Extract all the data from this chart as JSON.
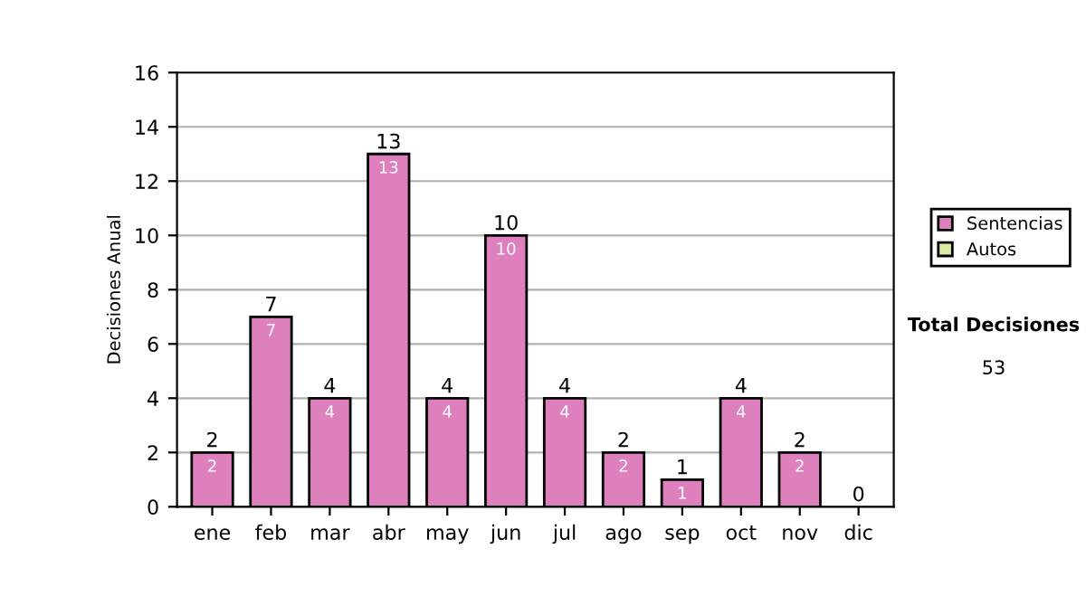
{
  "chart_data": {
    "type": "bar",
    "stacked": true,
    "ylabel": "Decisiones Anual",
    "categories": [
      "ene",
      "feb",
      "mar",
      "abr",
      "may",
      "jun",
      "jul",
      "ago",
      "sep",
      "oct",
      "nov",
      "dic"
    ],
    "series": [
      {
        "name": "Sentencias",
        "color": "#de80be",
        "values": [
          2,
          7,
          4,
          13,
          4,
          10,
          4,
          2,
          1,
          4,
          2,
          0
        ],
        "value_labels": [
          "2",
          "7",
          "4",
          "13",
          "4",
          "10",
          "4",
          "2",
          "1",
          "4",
          "2",
          null
        ]
      },
      {
        "name": "Autos",
        "color": "#d8eba0",
        "values": [
          0,
          0,
          0,
          0,
          0,
          0,
          0,
          0,
          0,
          0,
          0,
          0
        ]
      }
    ],
    "totals": [
      "2",
      "7",
      "4",
      "13",
      "4",
      "10",
      "4",
      "2",
      "1",
      "4",
      "2",
      "0"
    ],
    "ylim": [
      0,
      16
    ],
    "yticks": [
      0,
      2,
      4,
      6,
      8,
      10,
      12,
      14,
      16
    ],
    "grid": "y",
    "legend": "right",
    "annotations": [
      "Total Decisiones",
      "53"
    ]
  }
}
